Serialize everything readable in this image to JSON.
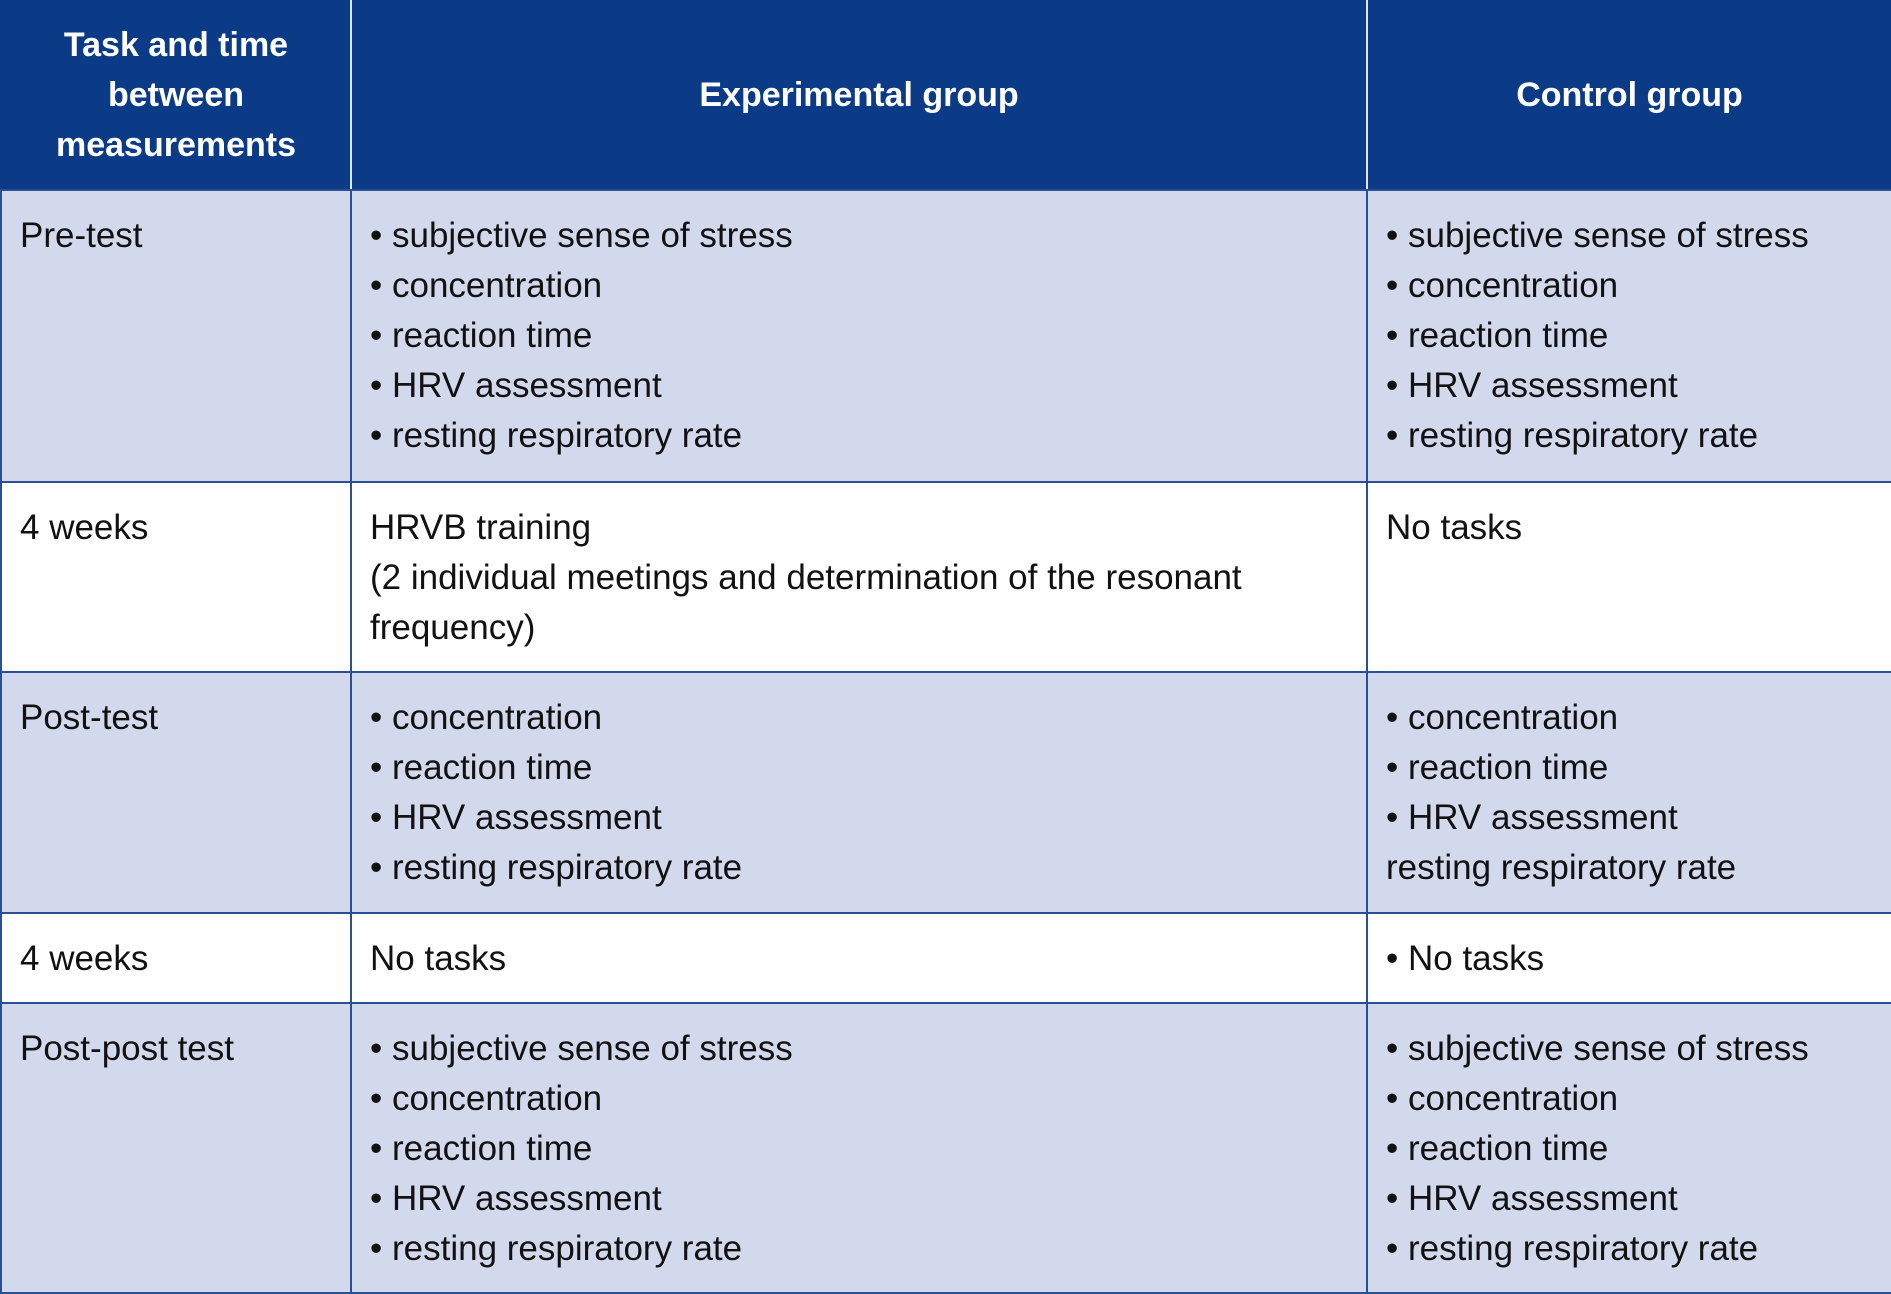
{
  "header": {
    "col1": "Task and time between measurements",
    "col2": "Experimental group",
    "col3": "Control group"
  },
  "rows": [
    {
      "label": "Pre-test",
      "experimental": [
        "subjective sense of stress",
        "concentration",
        "reaction time",
        "HRV assessment",
        "resting respiratory rate"
      ],
      "control": [
        "subjective sense of stress",
        "concentration",
        "reaction time",
        "HRV assessment",
        "resting respiratory rate"
      ]
    },
    {
      "label": "4 weeks",
      "experimental_title": "HRVB training",
      "experimental_detail": "(2 individual meetings and determination of the resonant frequency)",
      "control": "No tasks"
    },
    {
      "label": "Post-test",
      "experimental": [
        "concentration",
        "reaction time",
        "HRV assessment",
        "resting respiratory rate"
      ],
      "control_bullets": [
        "concentration",
        "reaction time",
        "HRV assessment"
      ],
      "control_extra": "resting respiratory rate"
    },
    {
      "label": "4 weeks",
      "experimental": "No tasks",
      "control": [
        "No tasks"
      ]
    },
    {
      "label": "Post-post test",
      "experimental": [
        "subjective sense of stress",
        "concentration",
        "reaction time",
        "HRV assessment",
        "resting respiratory rate"
      ],
      "control": [
        "subjective sense of stress",
        "concentration",
        "reaction time",
        "HRV assessment",
        "resting respiratory rate"
      ]
    }
  ]
}
